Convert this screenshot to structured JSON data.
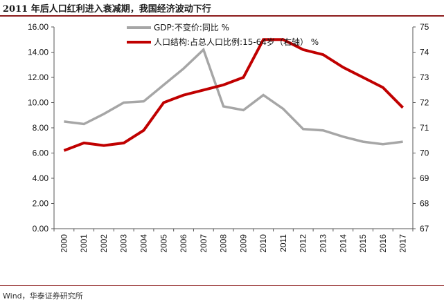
{
  "title": "2011 年后人口红利进入衰减期，我国经济波动下行",
  "source": "Wind，华泰证券研究所",
  "chart_data": {
    "type": "line",
    "categories": [
      "2000",
      "2001",
      "2002",
      "2003",
      "2004",
      "2005",
      "2006",
      "2007",
      "2008",
      "2009",
      "2010",
      "2011",
      "2012",
      "2013",
      "2014",
      "2015",
      "2016",
      "2017"
    ],
    "left_axis": {
      "ylim": [
        0,
        16
      ],
      "ticks": [
        "0.00",
        "2.00",
        "4.00",
        "6.00",
        "8.00",
        "10.00",
        "12.00",
        "14.00",
        "16.00"
      ]
    },
    "right_axis": {
      "ylim": [
        67,
        75
      ],
      "ticks": [
        "67",
        "68",
        "69",
        "70",
        "71",
        "72",
        "73",
        "74",
        "75"
      ]
    },
    "series": [
      {
        "name": "GDP:不变价:同比 %",
        "axis": "left",
        "color": "#a6a6a6",
        "values": [
          8.5,
          8.3,
          9.1,
          10.0,
          10.1,
          11.4,
          12.7,
          14.2,
          9.7,
          9.4,
          10.6,
          9.5,
          7.9,
          7.8,
          7.3,
          6.9,
          6.7,
          6.9
        ]
      },
      {
        "name": "人口结构:占总人口比例:15-64岁（右轴） %",
        "axis": "right",
        "color": "#c00000",
        "values": [
          70.1,
          70.4,
          70.3,
          70.4,
          70.9,
          72.0,
          72.3,
          72.5,
          72.7,
          73.0,
          74.5,
          74.5,
          74.1,
          73.9,
          73.4,
          73.0,
          72.6,
          71.8
        ]
      }
    ],
    "legend_position": "top-center",
    "grid": false
  }
}
